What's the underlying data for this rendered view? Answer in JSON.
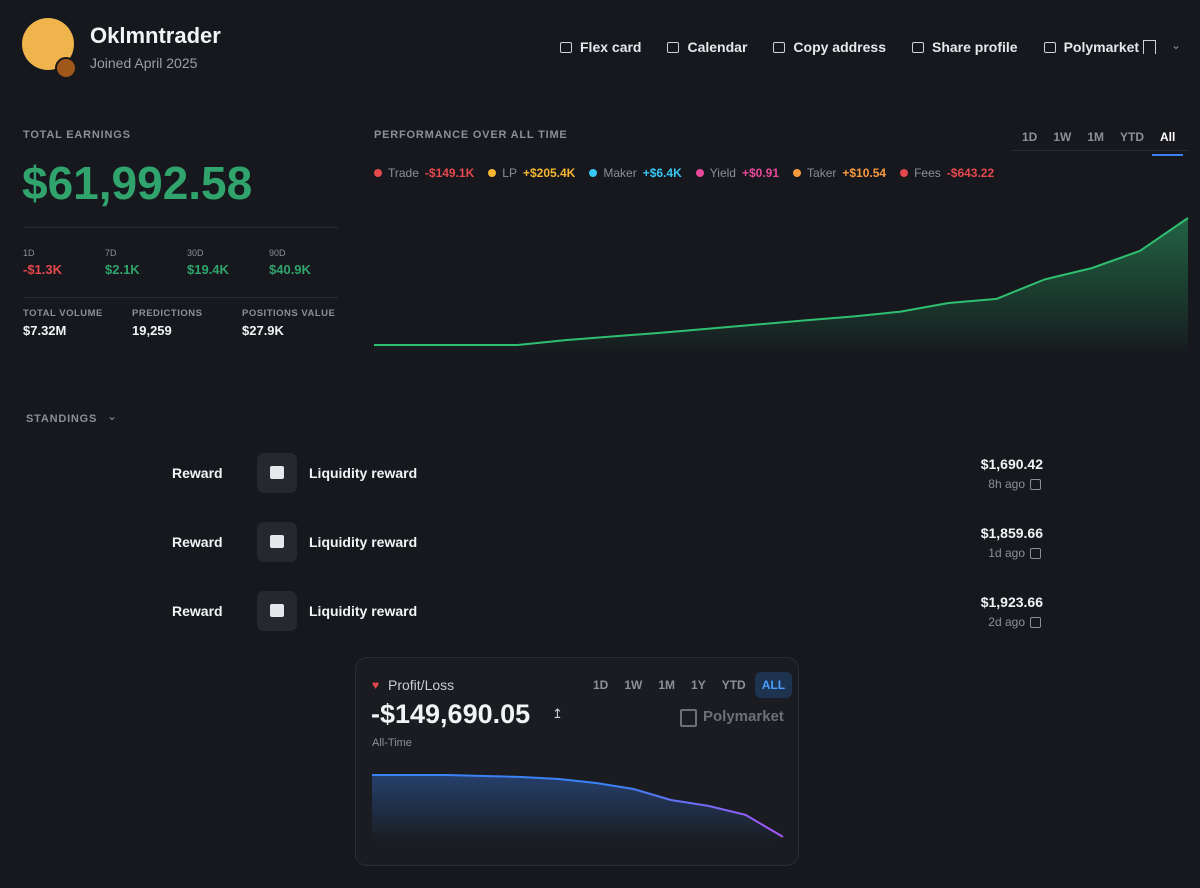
{
  "profile": {
    "name": "Oklmntrader",
    "joined": "Joined April 2025"
  },
  "nav": [
    "Flex card",
    "Calendar",
    "Copy address",
    "Share profile",
    "Polymarket"
  ],
  "earnings": {
    "label": "TOTAL EARNINGS",
    "value": "$61,992.58",
    "periods": [
      {
        "label": "1D",
        "value": "-$1.3K",
        "color": "#e5484d"
      },
      {
        "label": "7D",
        "value": "$2.1K",
        "color": "#30a46c"
      },
      {
        "label": "30D",
        "value": "$19.4K",
        "color": "#30a46c"
      },
      {
        "label": "90D",
        "value": "$40.9K",
        "color": "#30a46c"
      }
    ],
    "stats": [
      {
        "label": "TOTAL VOLUME",
        "value": "$7.32M"
      },
      {
        "label": "PREDICTIONS",
        "value": "19,259"
      },
      {
        "label": "POSITIONS VALUE",
        "value": "$27.9K"
      }
    ]
  },
  "performance": {
    "title": "PERFORMANCE OVER ALL TIME",
    "ranges": [
      "1D",
      "1W",
      "1M",
      "YTD",
      "All"
    ],
    "active_range": "All",
    "legend": [
      {
        "name": "Trade",
        "value": "-$149.1K",
        "color": "#e5484d"
      },
      {
        "name": "LP",
        "value": "+$205.4K",
        "color": "#f5b731"
      },
      {
        "name": "Maker",
        "value": "+$6.4K",
        "color": "#38c6f4"
      },
      {
        "name": "Yield",
        "value": "+$0.91",
        "color": "#e8489a"
      },
      {
        "name": "Taker",
        "value": "+$10.54",
        "color": "#f79a3e"
      },
      {
        "name": "Fees",
        "value": "-$643.22",
        "color": "#e5484d"
      }
    ]
  },
  "standings": {
    "title": "STANDINGS",
    "rows": [
      {
        "type": "Reward",
        "name": "Liquidity reward",
        "amount": "$1,690.42",
        "time": "8h ago"
      },
      {
        "type": "Reward",
        "name": "Liquidity reward",
        "amount": "$1,859.66",
        "time": "1d ago"
      },
      {
        "type": "Reward",
        "name": "Liquidity reward",
        "amount": "$1,923.66",
        "time": "2d ago"
      }
    ]
  },
  "pnl_card": {
    "label": "Profit/Loss",
    "value": "-$149,690.05",
    "period": "All-Time",
    "brand": "Polymarket",
    "ranges": [
      "1D",
      "1W",
      "1M",
      "1Y",
      "YTD",
      "ALL"
    ],
    "active_range": "ALL"
  },
  "chart_data": [
    {
      "type": "area",
      "color": "#2fbf71",
      "ylim": [
        0,
        62000
      ],
      "values": [
        0,
        0,
        0,
        0,
        2400,
        4200,
        6000,
        8000,
        10000,
        12000,
        13900,
        16300,
        20500,
        22500,
        32000,
        37600,
        46000,
        62000
      ]
    },
    {
      "type": "area",
      "color": "#3b82f6",
      "ylim": [
        -150000,
        0
      ],
      "values": [
        0,
        0,
        0,
        -2400,
        -4800,
        -9700,
        -19300,
        -33800,
        -60400,
        -74800,
        -96600,
        -149690.05
      ]
    }
  ]
}
